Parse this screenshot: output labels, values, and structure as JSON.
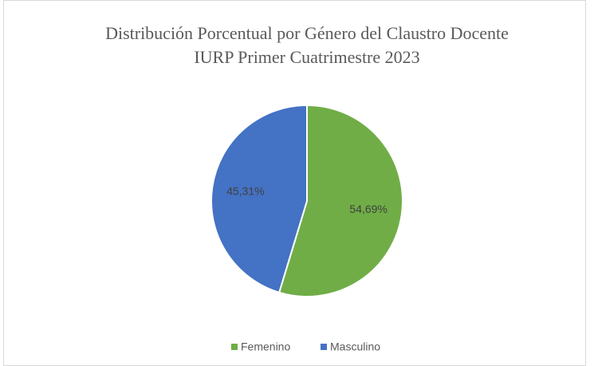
{
  "chart_data": {
    "type": "pie",
    "title": [
      "Distribución Porcentual por Género del Claustro Docente",
      "IURP Primer Cuatrimestre 2023"
    ],
    "categories": [
      "Femenino",
      "Masculino"
    ],
    "values": [
      54.69,
      45.31
    ],
    "value_labels": [
      "54,69%",
      "45,31%"
    ],
    "colors": [
      "#70ad47",
      "#4472c4"
    ],
    "legend": "bottom"
  }
}
